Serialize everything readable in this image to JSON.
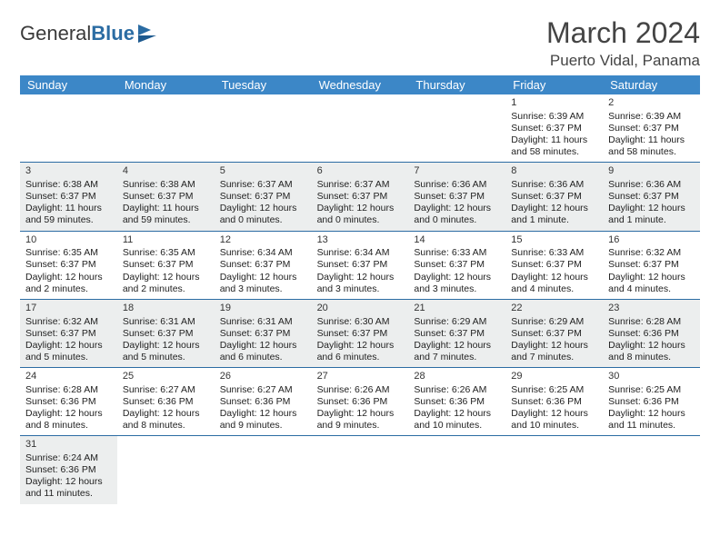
{
  "logo": {
    "part1": "General",
    "part2": "Blue"
  },
  "title": "March 2024",
  "location": "Puerto Vidal, Panama",
  "colors": {
    "header_bg": "#3c87c7",
    "row_divider": "#2b6ca3",
    "shaded_row": "#eceeee",
    "text": "#333333"
  },
  "layout": {
    "columns": 7,
    "fonts": {
      "title_pt": 32,
      "location_pt": 17,
      "header_pt": 13,
      "cell_pt": 10.5,
      "daynum_pt": 11
    }
  },
  "day_headers": [
    "Sunday",
    "Monday",
    "Tuesday",
    "Wednesday",
    "Thursday",
    "Friday",
    "Saturday"
  ],
  "weeks": [
    {
      "shaded": false,
      "days": [
        null,
        null,
        null,
        null,
        null,
        {
          "n": "1",
          "sunrise": "Sunrise: 6:39 AM",
          "sunset": "Sunset: 6:37 PM",
          "daylight": "Daylight: 11 hours and 58 minutes."
        },
        {
          "n": "2",
          "sunrise": "Sunrise: 6:39 AM",
          "sunset": "Sunset: 6:37 PM",
          "daylight": "Daylight: 11 hours and 58 minutes."
        }
      ]
    },
    {
      "shaded": true,
      "days": [
        {
          "n": "3",
          "sunrise": "Sunrise: 6:38 AM",
          "sunset": "Sunset: 6:37 PM",
          "daylight": "Daylight: 11 hours and 59 minutes."
        },
        {
          "n": "4",
          "sunrise": "Sunrise: 6:38 AM",
          "sunset": "Sunset: 6:37 PM",
          "daylight": "Daylight: 11 hours and 59 minutes."
        },
        {
          "n": "5",
          "sunrise": "Sunrise: 6:37 AM",
          "sunset": "Sunset: 6:37 PM",
          "daylight": "Daylight: 12 hours and 0 minutes."
        },
        {
          "n": "6",
          "sunrise": "Sunrise: 6:37 AM",
          "sunset": "Sunset: 6:37 PM",
          "daylight": "Daylight: 12 hours and 0 minutes."
        },
        {
          "n": "7",
          "sunrise": "Sunrise: 6:36 AM",
          "sunset": "Sunset: 6:37 PM",
          "daylight": "Daylight: 12 hours and 0 minutes."
        },
        {
          "n": "8",
          "sunrise": "Sunrise: 6:36 AM",
          "sunset": "Sunset: 6:37 PM",
          "daylight": "Daylight: 12 hours and 1 minute."
        },
        {
          "n": "9",
          "sunrise": "Sunrise: 6:36 AM",
          "sunset": "Sunset: 6:37 PM",
          "daylight": "Daylight: 12 hours and 1 minute."
        }
      ]
    },
    {
      "shaded": false,
      "days": [
        {
          "n": "10",
          "sunrise": "Sunrise: 6:35 AM",
          "sunset": "Sunset: 6:37 PM",
          "daylight": "Daylight: 12 hours and 2 minutes."
        },
        {
          "n": "11",
          "sunrise": "Sunrise: 6:35 AM",
          "sunset": "Sunset: 6:37 PM",
          "daylight": "Daylight: 12 hours and 2 minutes."
        },
        {
          "n": "12",
          "sunrise": "Sunrise: 6:34 AM",
          "sunset": "Sunset: 6:37 PM",
          "daylight": "Daylight: 12 hours and 3 minutes."
        },
        {
          "n": "13",
          "sunrise": "Sunrise: 6:34 AM",
          "sunset": "Sunset: 6:37 PM",
          "daylight": "Daylight: 12 hours and 3 minutes."
        },
        {
          "n": "14",
          "sunrise": "Sunrise: 6:33 AM",
          "sunset": "Sunset: 6:37 PM",
          "daylight": "Daylight: 12 hours and 3 minutes."
        },
        {
          "n": "15",
          "sunrise": "Sunrise: 6:33 AM",
          "sunset": "Sunset: 6:37 PM",
          "daylight": "Daylight: 12 hours and 4 minutes."
        },
        {
          "n": "16",
          "sunrise": "Sunrise: 6:32 AM",
          "sunset": "Sunset: 6:37 PM",
          "daylight": "Daylight: 12 hours and 4 minutes."
        }
      ]
    },
    {
      "shaded": true,
      "days": [
        {
          "n": "17",
          "sunrise": "Sunrise: 6:32 AM",
          "sunset": "Sunset: 6:37 PM",
          "daylight": "Daylight: 12 hours and 5 minutes."
        },
        {
          "n": "18",
          "sunrise": "Sunrise: 6:31 AM",
          "sunset": "Sunset: 6:37 PM",
          "daylight": "Daylight: 12 hours and 5 minutes."
        },
        {
          "n": "19",
          "sunrise": "Sunrise: 6:31 AM",
          "sunset": "Sunset: 6:37 PM",
          "daylight": "Daylight: 12 hours and 6 minutes."
        },
        {
          "n": "20",
          "sunrise": "Sunrise: 6:30 AM",
          "sunset": "Sunset: 6:37 PM",
          "daylight": "Daylight: 12 hours and 6 minutes."
        },
        {
          "n": "21",
          "sunrise": "Sunrise: 6:29 AM",
          "sunset": "Sunset: 6:37 PM",
          "daylight": "Daylight: 12 hours and 7 minutes."
        },
        {
          "n": "22",
          "sunrise": "Sunrise: 6:29 AM",
          "sunset": "Sunset: 6:37 PM",
          "daylight": "Daylight: 12 hours and 7 minutes."
        },
        {
          "n": "23",
          "sunrise": "Sunrise: 6:28 AM",
          "sunset": "Sunset: 6:36 PM",
          "daylight": "Daylight: 12 hours and 8 minutes."
        }
      ]
    },
    {
      "shaded": false,
      "days": [
        {
          "n": "24",
          "sunrise": "Sunrise: 6:28 AM",
          "sunset": "Sunset: 6:36 PM",
          "daylight": "Daylight: 12 hours and 8 minutes."
        },
        {
          "n": "25",
          "sunrise": "Sunrise: 6:27 AM",
          "sunset": "Sunset: 6:36 PM",
          "daylight": "Daylight: 12 hours and 8 minutes."
        },
        {
          "n": "26",
          "sunrise": "Sunrise: 6:27 AM",
          "sunset": "Sunset: 6:36 PM",
          "daylight": "Daylight: 12 hours and 9 minutes."
        },
        {
          "n": "27",
          "sunrise": "Sunrise: 6:26 AM",
          "sunset": "Sunset: 6:36 PM",
          "daylight": "Daylight: 12 hours and 9 minutes."
        },
        {
          "n": "28",
          "sunrise": "Sunrise: 6:26 AM",
          "sunset": "Sunset: 6:36 PM",
          "daylight": "Daylight: 12 hours and 10 minutes."
        },
        {
          "n": "29",
          "sunrise": "Sunrise: 6:25 AM",
          "sunset": "Sunset: 6:36 PM",
          "daylight": "Daylight: 12 hours and 10 minutes."
        },
        {
          "n": "30",
          "sunrise": "Sunrise: 6:25 AM",
          "sunset": "Sunset: 6:36 PM",
          "daylight": "Daylight: 12 hours and 11 minutes."
        }
      ]
    },
    {
      "shaded": true,
      "days": [
        {
          "n": "31",
          "sunrise": "Sunrise: 6:24 AM",
          "sunset": "Sunset: 6:36 PM",
          "daylight": "Daylight: 12 hours and 11 minutes."
        },
        null,
        null,
        null,
        null,
        null,
        null
      ]
    }
  ]
}
